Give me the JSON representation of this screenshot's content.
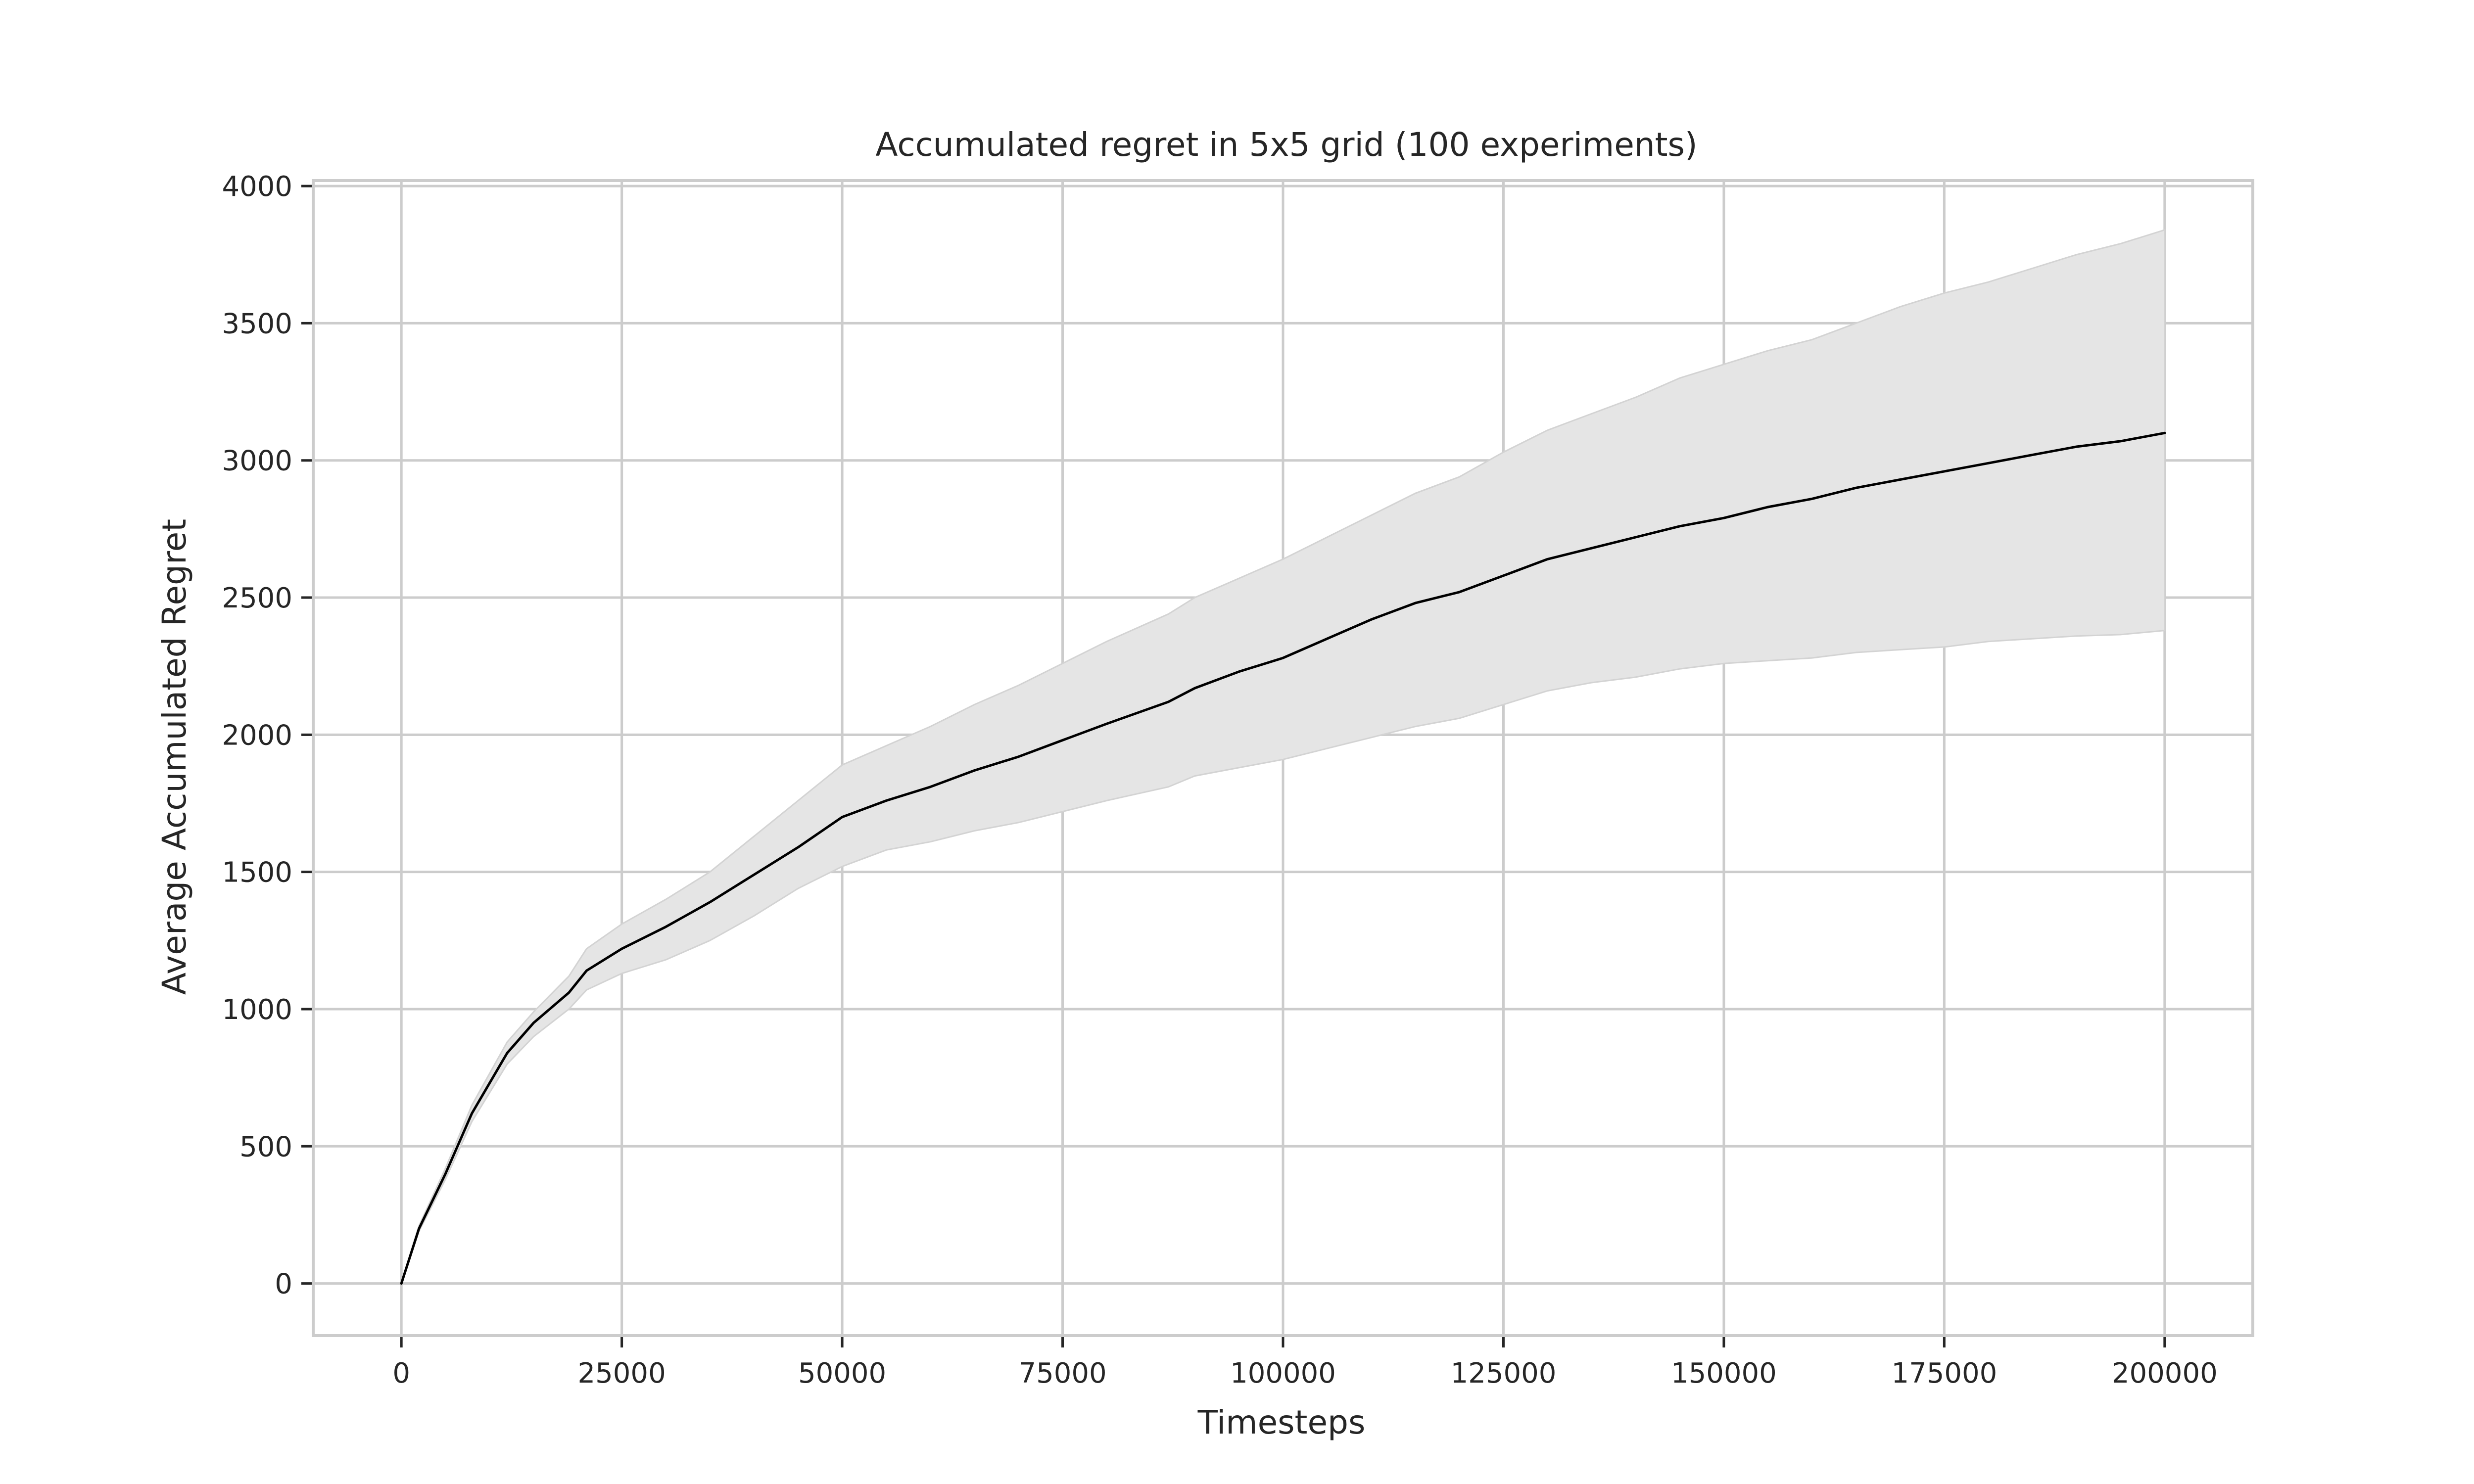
{
  "chart_data": {
    "type": "line",
    "title": "Accumulated regret in 5x5 grid (100 experiments)",
    "xlabel": "Timesteps",
    "ylabel": "Average Accumulated Regret",
    "xlim": [
      -10000,
      210000
    ],
    "ylim": [
      -190,
      4020
    ],
    "xticks": [
      0,
      25000,
      50000,
      75000,
      100000,
      125000,
      150000,
      175000,
      200000
    ],
    "xtick_labels": [
      "0",
      "25000",
      "50000",
      "75000",
      "100000",
      "125000",
      "150000",
      "175000",
      "200000"
    ],
    "yticks": [
      0,
      500,
      1000,
      1500,
      2000,
      2500,
      3000,
      3500,
      4000
    ],
    "ytick_labels": [
      "0",
      "500",
      "1000",
      "1500",
      "2000",
      "2500",
      "3000",
      "3500",
      "4000"
    ],
    "grid": true,
    "legend": "none",
    "colors": {
      "line": "#000000",
      "band": "#e5e5e5",
      "band_edge": "#d3d3d3",
      "grid": "#cccccc",
      "text": "#262626"
    },
    "series": [
      {
        "x": [
          0,
          2000,
          5000,
          8000,
          12000,
          15000,
          19000,
          21000,
          25000,
          30000,
          35000,
          40000,
          45000,
          50000,
          55000,
          60000,
          65000,
          70000,
          75000,
          80000,
          87000,
          90000,
          95000,
          100000,
          105000,
          110000,
          115000,
          120000,
          125000,
          130000,
          135000,
          140000,
          145000,
          150000,
          155000,
          160000,
          165000,
          170000,
          175000,
          180000,
          185000,
          190000,
          195000,
          200000
        ],
        "mean": [
          0,
          200,
          400,
          620,
          840,
          950,
          1060,
          1140,
          1220,
          1300,
          1390,
          1490,
          1590,
          1700,
          1760,
          1810,
          1870,
          1920,
          1980,
          2040,
          2120,
          2170,
          2230,
          2280,
          2350,
          2420,
          2480,
          2520,
          2580,
          2640,
          2680,
          2720,
          2760,
          2790,
          2830,
          2860,
          2900,
          2930,
          2960,
          2990,
          3020,
          3050,
          3070,
          3100
        ],
        "upper": [
          0,
          210,
          420,
          650,
          880,
          990,
          1120,
          1220,
          1310,
          1400,
          1500,
          1630,
          1760,
          1890,
          1960,
          2030,
          2110,
          2180,
          2260,
          2340,
          2440,
          2500,
          2570,
          2640,
          2720,
          2800,
          2880,
          2940,
          3030,
          3110,
          3170,
          3230,
          3300,
          3350,
          3400,
          3440,
          3500,
          3560,
          3610,
          3650,
          3700,
          3750,
          3790,
          3840
        ],
        "lower": [
          0,
          190,
          380,
          590,
          800,
          900,
          1000,
          1070,
          1130,
          1180,
          1250,
          1340,
          1440,
          1520,
          1580,
          1610,
          1650,
          1680,
          1720,
          1760,
          1810,
          1850,
          1880,
          1910,
          1950,
          1990,
          2030,
          2060,
          2110,
          2160,
          2190,
          2210,
          2240,
          2260,
          2270,
          2280,
          2300,
          2310,
          2320,
          2340,
          2350,
          2360,
          2365,
          2380
        ]
      }
    ]
  }
}
